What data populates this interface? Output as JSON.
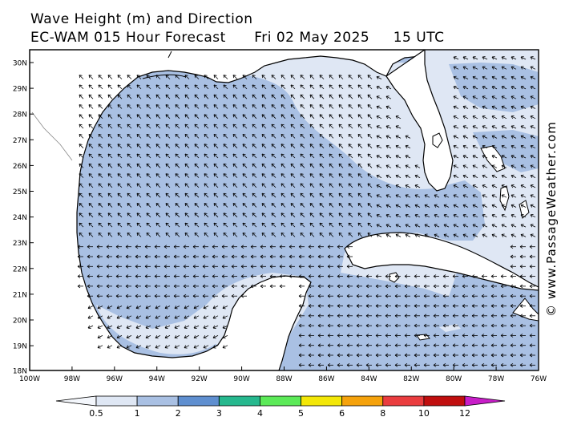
{
  "header": {
    "line1": "Wave Height (m) and Direction",
    "line2": "EC-WAM 015 Hour Forecast      Fri 02 May 2025     15 UTC"
  },
  "watermark": "© www.PassageWeather.com",
  "axes": {
    "lat_labels": [
      "30N",
      "29N",
      "28N",
      "27N",
      "26N",
      "25N",
      "24N",
      "23N",
      "22N",
      "21N",
      "20N",
      "19N",
      "18N"
    ],
    "lon_labels": [
      "100W",
      "98W",
      "96W",
      "94W",
      "92W",
      "90W",
      "88W",
      "86W",
      "84W",
      "82W",
      "80W",
      "78W",
      "76W"
    ]
  },
  "legend": {
    "labels": [
      "0.5",
      "1",
      "2",
      "3",
      "4",
      "5",
      "6",
      "8",
      "10",
      "12"
    ],
    "colors": [
      "#dfe7f4",
      "#a9c0e3",
      "#5f8fd0",
      "#26b88e",
      "#5cea58",
      "#f3e707",
      "#f5a20c",
      "#ea3d3f",
      "#c00f0f",
      "#c81ec8"
    ]
  },
  "colors": {
    "land": "#ffffff",
    "coast": "#000000",
    "sea_low": "#dfe7f4",
    "sea_mid": "#a9c0e3",
    "arrow": "#000000"
  }
}
